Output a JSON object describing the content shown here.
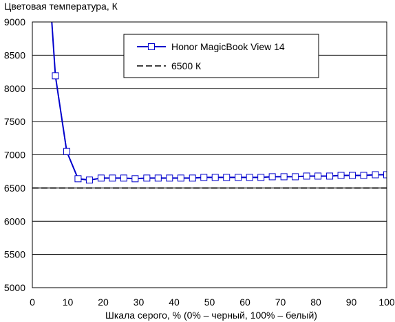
{
  "chart_data": {
    "type": "line",
    "title": "Цветовая температура, К",
    "xlabel": "Шкала серого, % (0% – черный, 100% – белый)",
    "ylabel": "",
    "xlim": [
      0,
      100
    ],
    "ylim": [
      5000,
      9000
    ],
    "x_ticks": [
      0,
      10,
      20,
      30,
      40,
      50,
      60,
      70,
      80,
      90,
      100
    ],
    "y_ticks": [
      5000,
      5500,
      6000,
      6500,
      7000,
      7500,
      8000,
      8500,
      9000
    ],
    "grid": "horizontal",
    "legend_position": "top-right",
    "series": [
      {
        "name": "Honor MagicBook View 14",
        "color": "#0000cc",
        "marker": "square",
        "points": [
          [
            5.5,
            9000
          ],
          [
            6.5,
            8190
          ],
          [
            9.7,
            7050
          ],
          [
            12.9,
            6640
          ],
          [
            16.1,
            6620
          ],
          [
            19.4,
            6650
          ],
          [
            22.6,
            6650
          ],
          [
            25.8,
            6650
          ],
          [
            29.0,
            6640
          ],
          [
            32.3,
            6650
          ],
          [
            35.5,
            6650
          ],
          [
            38.7,
            6650
          ],
          [
            41.9,
            6650
          ],
          [
            45.2,
            6650
          ],
          [
            48.4,
            6660
          ],
          [
            51.6,
            6660
          ],
          [
            54.8,
            6660
          ],
          [
            58.1,
            6660
          ],
          [
            61.3,
            6660
          ],
          [
            64.5,
            6660
          ],
          [
            67.7,
            6670
          ],
          [
            71.0,
            6670
          ],
          [
            74.2,
            6670
          ],
          [
            77.4,
            6680
          ],
          [
            80.6,
            6680
          ],
          [
            83.9,
            6680
          ],
          [
            87.1,
            6690
          ],
          [
            90.3,
            6690
          ],
          [
            93.5,
            6690
          ],
          [
            96.8,
            6700
          ],
          [
            100.0,
            6700
          ]
        ]
      },
      {
        "name": "6500 К",
        "color": "#000000",
        "style": "dashed",
        "points": [
          [
            0,
            6500
          ],
          [
            100,
            6500
          ]
        ]
      }
    ]
  }
}
